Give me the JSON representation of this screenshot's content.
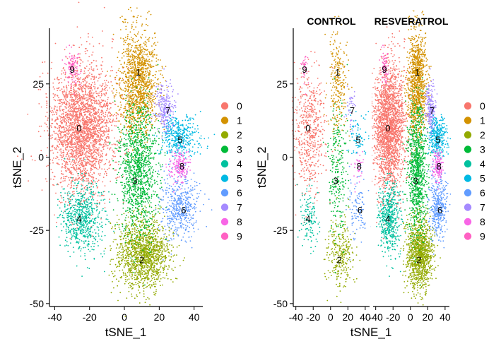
{
  "chart_data": [
    {
      "type": "scatter",
      "title": "",
      "xlabel": "tSNE_1",
      "ylabel": "tSNE_2",
      "xlim": [
        -43,
        45
      ],
      "ylim": [
        -51,
        44
      ],
      "x_ticks": [
        -40,
        -20,
        0,
        20,
        40
      ],
      "y_ticks": [
        -50,
        -25,
        0,
        25
      ],
      "x_tick_labels": [
        "-40",
        "-20",
        "0",
        "20",
        "40"
      ],
      "y_tick_labels": [
        "-50",
        "-25",
        "0",
        "25"
      ],
      "grid": false,
      "legend": "right",
      "clusters": [
        {
          "name": "0",
          "color": "#F8766D",
          "cx": -24,
          "cy": 10,
          "sx": 9,
          "sy": 11,
          "n": 2600,
          "label_x": -26,
          "label_y": 10
        },
        {
          "name": "1",
          "color": "#D39200",
          "cx": 8,
          "cy": 25,
          "sx": 5.5,
          "sy": 9,
          "n": 1300,
          "label_x": 8,
          "label_y": 29
        },
        {
          "name": "2",
          "color": "#93AA00",
          "cx": 11,
          "cy": -33,
          "sx": 7.5,
          "sy": 6,
          "n": 1400,
          "label_x": 10,
          "label_y": -35
        },
        {
          "name": "3",
          "color": "#00BA38",
          "cx": 8,
          "cy": -5,
          "sx": 5.5,
          "sy": 11,
          "n": 1150,
          "label_x": 6,
          "label_y": -8
        },
        {
          "name": "4",
          "color": "#00C19F",
          "cx": -24,
          "cy": -21,
          "sx": 6,
          "sy": 6,
          "n": 650,
          "label_x": -26,
          "label_y": -21
        },
        {
          "name": "5",
          "color": "#00B9E3",
          "cx": 31,
          "cy": 7,
          "sx": 5.5,
          "sy": 3.5,
          "n": 420,
          "label_x": 32,
          "label_y": 6
        },
        {
          "name": "6",
          "color": "#619CFF",
          "cx": 32,
          "cy": -17,
          "sx": 5,
          "sy": 5.5,
          "n": 480,
          "label_x": 34,
          "label_y": -18
        },
        {
          "name": "7",
          "color": "#A58AFF",
          "cx": 23,
          "cy": 17,
          "sx": 3,
          "sy": 4,
          "n": 230,
          "label_x": 25,
          "label_y": 16
        },
        {
          "name": "8",
          "color": "#F866E6",
          "cx": 32,
          "cy": -3,
          "sx": 3,
          "sy": 2.5,
          "n": 170,
          "label_x": 33,
          "label_y": -3
        },
        {
          "name": "9",
          "color": "#FF61C3",
          "cx": -30,
          "cy": 31,
          "sx": 2,
          "sy": 3,
          "n": 110,
          "label_x": -30,
          "label_y": 30
        }
      ]
    },
    {
      "type": "scatter",
      "facets": [
        "CONTROL",
        "RESVERATROL"
      ],
      "xlabel": "tSNE_1",
      "ylabel": "tSNE_2",
      "xlim": [
        -43,
        45
      ],
      "ylim": [
        -51,
        44
      ],
      "x_ticks": [
        -40,
        -20,
        0,
        20,
        40
      ],
      "y_ticks": [
        -50,
        -25,
        0,
        25
      ],
      "x_tick_labels": [
        "-40",
        "-20",
        "0",
        "20",
        "40"
      ],
      "y_tick_labels": [
        "-50",
        "-25",
        "0",
        "25"
      ],
      "grid": false,
      "legend": "right",
      "facet_fraction": {
        "CONTROL": 0.2,
        "RESVERATROL": 0.8
      },
      "legend_entries": [
        "0",
        "1",
        "2",
        "3",
        "4",
        "5",
        "6",
        "7",
        "8",
        "9"
      ],
      "legend_colors": [
        "#F8766D",
        "#D39200",
        "#93AA00",
        "#00BA38",
        "#00C19F",
        "#00B9E3",
        "#619CFF",
        "#A58AFF",
        "#F866E6",
        "#FF61C3"
      ]
    }
  ]
}
